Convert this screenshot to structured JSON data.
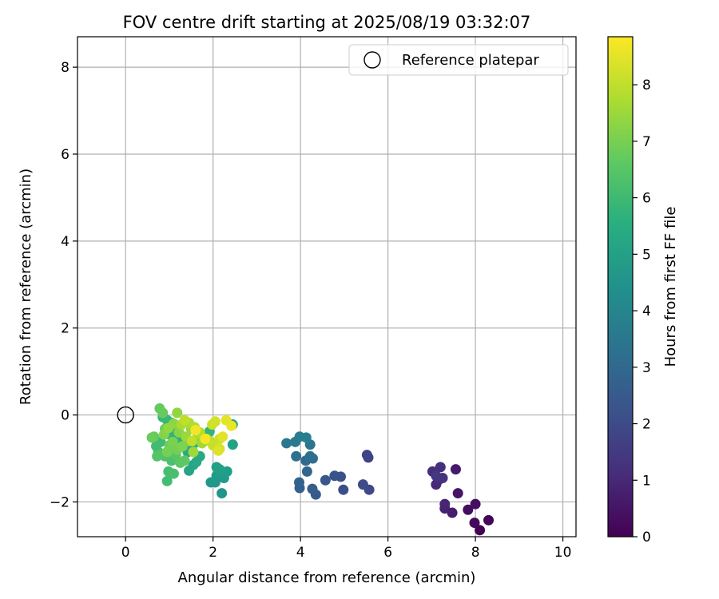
{
  "chart_data": {
    "type": "scatter",
    "title": "FOV centre drift starting at 2025/08/19 03:32:07",
    "xlabel": "Angular distance from reference (arcmin)",
    "ylabel": "Rotation from reference (arcmin)",
    "colorbar_label": "Hours from first FF file",
    "xlim": [
      -1.1,
      10.3
    ],
    "ylim": [
      -2.8,
      8.7
    ],
    "xticks": [
      0,
      2,
      4,
      6,
      8,
      10
    ],
    "yticks": [
      -2,
      0,
      2,
      4,
      6,
      8
    ],
    "colorbar_range": [
      0,
      8.85
    ],
    "colorbar_ticks": [
      0,
      1,
      2,
      3,
      4,
      5,
      6,
      7,
      8
    ],
    "colormap": "viridis",
    "grid": true,
    "legend_position": "top-right",
    "reference": {
      "label": "Reference platepar",
      "x": 0,
      "y": 0
    },
    "points": [
      {
        "x": 8.1,
        "y": -2.65,
        "h": 0.05
      },
      {
        "x": 8.3,
        "y": -2.42,
        "h": 0.1
      },
      {
        "x": 7.98,
        "y": -2.48,
        "h": 0.2
      },
      {
        "x": 7.83,
        "y": -2.18,
        "h": 0.3
      },
      {
        "x": 8.0,
        "y": -2.05,
        "h": 0.35
      },
      {
        "x": 7.6,
        "y": -1.8,
        "h": 0.5
      },
      {
        "x": 7.55,
        "y": -1.25,
        "h": 0.6
      },
      {
        "x": 7.47,
        "y": -2.25,
        "h": 0.7
      },
      {
        "x": 7.3,
        "y": -2.15,
        "h": 0.8
      },
      {
        "x": 7.3,
        "y": -2.05,
        "h": 0.9
      },
      {
        "x": 7.1,
        "y": -1.6,
        "h": 1.0
      },
      {
        "x": 7.15,
        "y": -1.5,
        "h": 1.05
      },
      {
        "x": 7.02,
        "y": -1.3,
        "h": 1.15
      },
      {
        "x": 7.2,
        "y": -1.2,
        "h": 1.2
      },
      {
        "x": 7.25,
        "y": -1.45,
        "h": 1.3
      },
      {
        "x": 7.1,
        "y": -1.4,
        "h": 1.4
      },
      {
        "x": 5.52,
        "y": -0.92,
        "h": 1.7
      },
      {
        "x": 5.55,
        "y": -0.98,
        "h": 1.8
      },
      {
        "x": 5.57,
        "y": -1.72,
        "h": 1.9
      },
      {
        "x": 5.43,
        "y": -1.6,
        "h": 2.0
      },
      {
        "x": 4.98,
        "y": -1.72,
        "h": 2.1
      },
      {
        "x": 4.92,
        "y": -1.42,
        "h": 2.2
      },
      {
        "x": 4.78,
        "y": -1.4,
        "h": 2.3
      },
      {
        "x": 4.57,
        "y": -1.5,
        "h": 2.4
      },
      {
        "x": 4.35,
        "y": -1.83,
        "h": 2.5
      },
      {
        "x": 4.27,
        "y": -1.7,
        "h": 2.6
      },
      {
        "x": 3.98,
        "y": -1.68,
        "h": 2.7
      },
      {
        "x": 3.97,
        "y": -1.55,
        "h": 2.8
      },
      {
        "x": 4.15,
        "y": -1.3,
        "h": 2.9
      },
      {
        "x": 4.12,
        "y": -1.05,
        "h": 3.0
      },
      {
        "x": 4.28,
        "y": -1.0,
        "h": 3.1
      },
      {
        "x": 4.22,
        "y": -0.95,
        "h": 3.2
      },
      {
        "x": 3.9,
        "y": -0.95,
        "h": 3.3
      },
      {
        "x": 4.22,
        "y": -0.68,
        "h": 3.4
      },
      {
        "x": 3.68,
        "y": -0.65,
        "h": 3.5
      },
      {
        "x": 3.88,
        "y": -0.62,
        "h": 3.6
      },
      {
        "x": 3.98,
        "y": -0.5,
        "h": 3.7
      },
      {
        "x": 4.13,
        "y": -0.52,
        "h": 3.8
      },
      {
        "x": 2.2,
        "y": -1.8,
        "h": 4.6
      },
      {
        "x": 2.05,
        "y": -1.55,
        "h": 4.7
      },
      {
        "x": 1.95,
        "y": -1.55,
        "h": 4.75
      },
      {
        "x": 2.25,
        "y": -1.45,
        "h": 4.8
      },
      {
        "x": 2.08,
        "y": -1.4,
        "h": 4.85
      },
      {
        "x": 2.2,
        "y": -1.32,
        "h": 4.9
      },
      {
        "x": 2.32,
        "y": -1.3,
        "h": 4.95
      },
      {
        "x": 2.08,
        "y": -1.2,
        "h": 5.0
      },
      {
        "x": 2.15,
        "y": -1.25,
        "h": 5.05
      },
      {
        "x": 2.45,
        "y": -0.68,
        "h": 5.1
      },
      {
        "x": 2.45,
        "y": -0.22,
        "h": 5.15
      },
      {
        "x": 1.45,
        "y": -1.28,
        "h": 5.2
      },
      {
        "x": 1.55,
        "y": -1.15,
        "h": 5.25
      },
      {
        "x": 1.62,
        "y": -1.08,
        "h": 5.3
      },
      {
        "x": 1.7,
        "y": -0.95,
        "h": 5.35
      },
      {
        "x": 1.42,
        "y": -0.85,
        "h": 5.4
      },
      {
        "x": 1.52,
        "y": -0.78,
        "h": 5.45
      },
      {
        "x": 1.35,
        "y": -0.65,
        "h": 5.5
      },
      {
        "x": 1.65,
        "y": -0.62,
        "h": 5.55
      },
      {
        "x": 1.2,
        "y": -0.55,
        "h": 5.6
      },
      {
        "x": 1.85,
        "y": -0.5,
        "h": 5.65
      },
      {
        "x": 1.0,
        "y": -0.45,
        "h": 5.7
      },
      {
        "x": 1.92,
        "y": -0.38,
        "h": 5.75
      },
      {
        "x": 1.15,
        "y": -0.28,
        "h": 5.8
      },
      {
        "x": 0.95,
        "y": -0.12,
        "h": 5.85
      },
      {
        "x": 1.05,
        "y": -0.18,
        "h": 5.9
      },
      {
        "x": 0.85,
        "y": -0.05,
        "h": 5.95
      },
      {
        "x": 0.75,
        "y": -0.85,
        "h": 6.0
      },
      {
        "x": 0.8,
        "y": -0.62,
        "h": 6.05
      },
      {
        "x": 0.7,
        "y": -0.72,
        "h": 6.1
      },
      {
        "x": 0.95,
        "y": -1.52,
        "h": 6.15
      },
      {
        "x": 0.98,
        "y": -1.3,
        "h": 6.2
      },
      {
        "x": 1.1,
        "y": -1.35,
        "h": 6.25
      },
      {
        "x": 1.05,
        "y": -1.05,
        "h": 6.3
      },
      {
        "x": 0.9,
        "y": -0.95,
        "h": 6.35
      },
      {
        "x": 0.82,
        "y": -0.9,
        "h": 6.4
      },
      {
        "x": 0.72,
        "y": -0.95,
        "h": 6.45
      },
      {
        "x": 1.15,
        "y": -0.92,
        "h": 6.5
      },
      {
        "x": 1.25,
        "y": -1.1,
        "h": 6.55
      },
      {
        "x": 1.35,
        "y": -1.05,
        "h": 6.6
      },
      {
        "x": 0.65,
        "y": -0.5,
        "h": 6.65
      },
      {
        "x": 0.78,
        "y": 0.15,
        "h": 6.7
      },
      {
        "x": 0.85,
        "y": 0.05,
        "h": 6.75
      },
      {
        "x": 0.6,
        "y": -0.52,
        "h": 6.8
      },
      {
        "x": 0.9,
        "y": -0.32,
        "h": 6.85
      },
      {
        "x": 1.0,
        "y": -0.7,
        "h": 6.9
      },
      {
        "x": 1.18,
        "y": -0.8,
        "h": 6.95
      },
      {
        "x": 0.95,
        "y": -0.85,
        "h": 7.0
      },
      {
        "x": 1.08,
        "y": -0.62,
        "h": 7.05
      },
      {
        "x": 1.3,
        "y": -0.72,
        "h": 7.1
      },
      {
        "x": 1.45,
        "y": -0.6,
        "h": 7.15
      },
      {
        "x": 0.88,
        "y": -0.45,
        "h": 7.2
      },
      {
        "x": 1.22,
        "y": -0.4,
        "h": 7.25
      },
      {
        "x": 1.1,
        "y": -0.2,
        "h": 7.3
      },
      {
        "x": 1.18,
        "y": 0.05,
        "h": 7.35
      },
      {
        "x": 0.98,
        "y": -0.3,
        "h": 7.4
      },
      {
        "x": 1.5,
        "y": -0.32,
        "h": 7.45
      },
      {
        "x": 1.38,
        "y": -0.5,
        "h": 7.5
      },
      {
        "x": 1.55,
        "y": -0.85,
        "h": 7.55
      },
      {
        "x": 1.65,
        "y": -0.45,
        "h": 7.6
      },
      {
        "x": 1.75,
        "y": -0.65,
        "h": 7.65
      },
      {
        "x": 1.28,
        "y": -0.22,
        "h": 7.7
      },
      {
        "x": 1.45,
        "y": -0.18,
        "h": 7.75
      },
      {
        "x": 1.58,
        "y": -0.28,
        "h": 7.8
      },
      {
        "x": 1.7,
        "y": -0.4,
        "h": 7.85
      },
      {
        "x": 1.85,
        "y": -0.55,
        "h": 7.9
      },
      {
        "x": 1.95,
        "y": -0.62,
        "h": 7.95
      },
      {
        "x": 1.35,
        "y": -0.12,
        "h": 8.0
      },
      {
        "x": 1.52,
        "y": -0.6,
        "h": 8.05
      },
      {
        "x": 2.0,
        "y": -0.7,
        "h": 8.1
      },
      {
        "x": 2.15,
        "y": -0.55,
        "h": 8.15
      },
      {
        "x": 1.98,
        "y": -0.22,
        "h": 8.2
      },
      {
        "x": 2.05,
        "y": -0.15,
        "h": 8.25
      },
      {
        "x": 2.15,
        "y": -0.78,
        "h": 8.3
      },
      {
        "x": 2.12,
        "y": -0.82,
        "h": 8.4
      },
      {
        "x": 2.22,
        "y": -0.5,
        "h": 8.45
      },
      {
        "x": 2.3,
        "y": -0.12,
        "h": 8.5
      },
      {
        "x": 2.42,
        "y": -0.25,
        "h": 8.6
      },
      {
        "x": 1.6,
        "y": -0.35,
        "h": 8.7
      },
      {
        "x": 1.82,
        "y": -0.55,
        "h": 8.75
      }
    ]
  }
}
